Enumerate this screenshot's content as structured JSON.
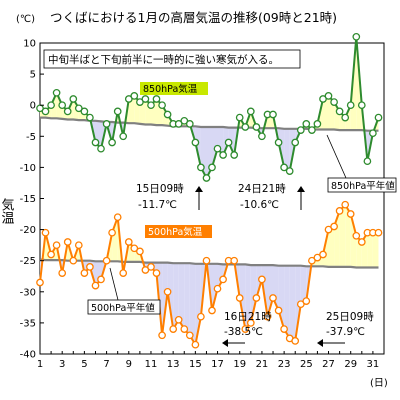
{
  "chart_data": {
    "type": "line",
    "title": "つくばにおける1月の高層気温の推移(09時と21時)",
    "y_unit": "(℃)",
    "ylabel": "気温",
    "x_unit": "(日)",
    "ylim": [
      -40,
      10
    ],
    "yticks": [
      10,
      5,
      0,
      -5,
      -10,
      -15,
      -20,
      -25,
      -30,
      -35,
      -40
    ],
    "xlim": [
      1,
      32
    ],
    "xticks": [
      1,
      3,
      5,
      7,
      9,
      11,
      13,
      15,
      17,
      19,
      21,
      23,
      25,
      27,
      29,
      31
    ],
    "grid": false,
    "note": "中旬半ばと下旬前半に一時的に強い寒気が入る。",
    "series": [
      {
        "name": "850hPa気温",
        "color": "#2e8b2e",
        "fill_above_normal": "#ffffc0",
        "fill_below_normal": "#d8d8f4",
        "x": [
          1.0,
          1.5,
          2.0,
          2.5,
          3.0,
          3.5,
          4.0,
          4.5,
          5.0,
          5.5,
          6.0,
          6.5,
          7.0,
          7.5,
          8.0,
          8.5,
          9.0,
          9.5,
          10.0,
          10.5,
          11.0,
          11.5,
          12.0,
          12.5,
          13.0,
          13.5,
          14.0,
          14.5,
          15.0,
          15.5,
          16.0,
          16.5,
          17.0,
          17.5,
          18.0,
          18.5,
          19.0,
          19.5,
          20.0,
          20.5,
          21.0,
          21.5,
          22.0,
          22.5,
          23.0,
          23.5,
          24.0,
          24.5,
          25.0,
          25.5,
          26.0,
          26.5,
          27.0,
          27.5,
          28.0,
          28.5,
          29.0,
          29.5,
          30.0,
          30.5,
          31.0,
          31.5
        ],
        "values": [
          -0.5,
          -1,
          0,
          2,
          0,
          -1,
          1,
          -0.5,
          -1,
          -2,
          -6,
          -7,
          -3,
          -6,
          -1,
          -5,
          1,
          1.5,
          0.5,
          1,
          0,
          1,
          0,
          -1.5,
          -3,
          -3,
          -2.5,
          -3,
          -6,
          -10,
          -11.7,
          -10,
          -7,
          -8,
          -6,
          -8,
          -2,
          -3.5,
          -1,
          -3.5,
          -5,
          -1.5,
          -1.5,
          -6,
          -10,
          -10.6,
          -6,
          -4,
          -3,
          -4,
          -3,
          1,
          1.5,
          0.5,
          -1,
          -2,
          0,
          11,
          0,
          -9,
          -4.5,
          -2
        ],
        "normal": [
          -2.0,
          -2.0,
          -2.1,
          -2.1,
          -2.2,
          -2.3,
          -2.3,
          -2.4,
          -2.4,
          -2.5,
          -2.5,
          -2.6,
          -2.7,
          -2.7,
          -2.8,
          -2.8,
          -2.9,
          -2.9,
          -3.0,
          -3.1,
          -3.1,
          -3.2,
          -3.2,
          -3.3,
          -3.4,
          -3.4,
          -3.4,
          -3.4,
          -3.4,
          -3.5,
          -3.5,
          -3.5,
          -3.5,
          -3.5,
          -3.6,
          -3.6,
          -3.6,
          -3.6,
          -3.6,
          -3.7,
          -3.7,
          -3.7,
          -3.7,
          -3.7,
          -3.8,
          -3.8,
          -3.8,
          -3.8,
          -3.8,
          -3.9,
          -3.9,
          -3.9,
          -3.9,
          -3.9,
          -4.0,
          -4.0,
          -4.0,
          -4.0,
          -4.0,
          -4.1,
          -4.1,
          -4.1
        ],
        "label": "850hPa気温",
        "normal_label": "850hPa平年値",
        "annotations": [
          {
            "day_label": "15日09時",
            "value_label": "-11.7℃"
          },
          {
            "day_label": "24日21時",
            "value_label": "-10.6℃"
          }
        ]
      },
      {
        "name": "500hPa気温",
        "color": "#ff7f00",
        "fill_above_normal": "#ffffc0",
        "fill_below_normal": "#d8d8f4",
        "x": [
          1.0,
          1.5,
          2.0,
          2.5,
          3.0,
          3.5,
          4.0,
          4.5,
          5.0,
          5.5,
          6.0,
          6.5,
          7.0,
          7.5,
          8.0,
          8.5,
          9.0,
          9.5,
          10.0,
          10.5,
          11.0,
          11.5,
          12.0,
          12.5,
          13.0,
          13.5,
          14.0,
          14.5,
          15.0,
          15.5,
          16.0,
          16.5,
          17.0,
          17.5,
          18.0,
          18.5,
          19.0,
          19.5,
          20.0,
          20.5,
          21.0,
          21.5,
          22.0,
          22.5,
          23.0,
          23.5,
          24.0,
          24.5,
          25.0,
          25.5,
          26.0,
          26.5,
          27.0,
          27.5,
          28.0,
          28.5,
          29.0,
          29.5,
          30.0,
          30.5,
          31.0,
          31.5
        ],
        "values": [
          -28.5,
          -20.5,
          -24,
          -22.5,
          -27,
          -22,
          -25,
          -22.5,
          -27,
          -26,
          -29,
          -28,
          -25,
          -20.5,
          -18,
          -27,
          -22,
          -23,
          -23.5,
          -26.5,
          -26,
          -27,
          -37,
          -30,
          -36,
          -34.5,
          -36,
          -37,
          -38.5,
          -34,
          -25,
          -33,
          -29.5,
          -28,
          -25,
          -25,
          -31,
          -36,
          -35,
          -31,
          -28,
          -34,
          -31,
          -33,
          -36,
          -37.5,
          -37.9,
          -32,
          -31.5,
          -25,
          -24.5,
          -24,
          -20,
          -19.5,
          -17,
          -16,
          -17.5,
          -21,
          -22,
          -20.5,
          -20.5,
          -20.5
        ],
        "normal": [
          -24.8,
          -24.9,
          -24.9,
          -24.9,
          -24.9,
          -25.0,
          -25.0,
          -25.0,
          -25.0,
          -25.0,
          -25.1,
          -25.1,
          -25.1,
          -25.1,
          -25.1,
          -25.2,
          -25.2,
          -25.2,
          -25.2,
          -25.3,
          -25.3,
          -25.3,
          -25.3,
          -25.3,
          -25.4,
          -25.4,
          -25.4,
          -25.4,
          -25.5,
          -25.5,
          -25.5,
          -25.5,
          -25.5,
          -25.6,
          -25.6,
          -25.6,
          -25.6,
          -25.6,
          -25.7,
          -25.7,
          -25.7,
          -25.7,
          -25.7,
          -25.8,
          -25.8,
          -25.8,
          -25.8,
          -25.8,
          -25.9,
          -25.9,
          -25.9,
          -25.9,
          -26.0,
          -26.0,
          -26.0,
          -26.0,
          -26.0,
          -26.1,
          -26.1,
          -26.1,
          -26.1,
          -26.1
        ],
        "label": "500hPa気温",
        "normal_label": "500hPa平年値",
        "annotations": [
          {
            "day_label": "16日21時",
            "value_label": "-38.5℃"
          },
          {
            "day_label": "25日09時",
            "value_label": "-37.9℃"
          }
        ]
      }
    ]
  }
}
